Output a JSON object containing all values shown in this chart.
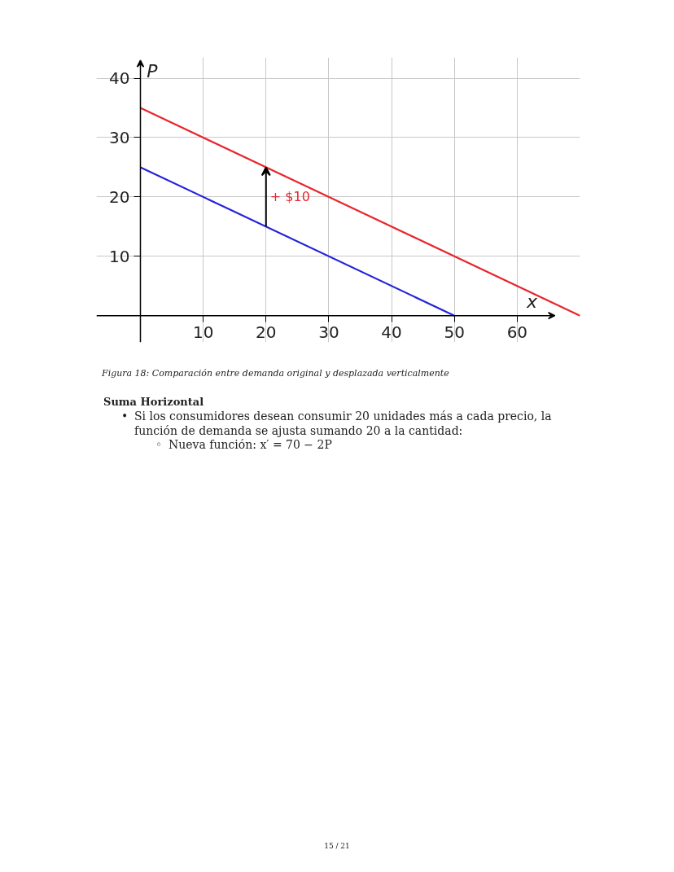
{
  "chart_data": {
    "type": "line",
    "xlabel": "x",
    "ylabel": "P",
    "xlim": [
      -7,
      70
    ],
    "ylim": [
      -4.5,
      43.5
    ],
    "xticks": [
      10,
      20,
      30,
      40,
      50,
      60
    ],
    "yticks": [
      10,
      20,
      30,
      40
    ],
    "grid": true,
    "series": [
      {
        "color": "#e8262c",
        "x": [
          0,
          70
        ],
        "values": [
          35,
          0
        ]
      },
      {
        "color": "#2323d9",
        "x": [
          0,
          50
        ],
        "values": [
          25,
          0
        ]
      }
    ],
    "annotations": [
      {
        "text": "+ $10",
        "x": 20,
        "y": 25
      },
      "Figura 18: Comparación entre demanda original y desplazada verticalmente",
      "Suma Horizontal",
      "•",
      "Si los consumidores desean consumir 20 unidades más a cada precio, la función de demanda se ajusta sumando 20 a la cantidad:",
      "◦",
      "Nueva función: x′ = 70 − 2P",
      "15 / 21"
    ]
  }
}
